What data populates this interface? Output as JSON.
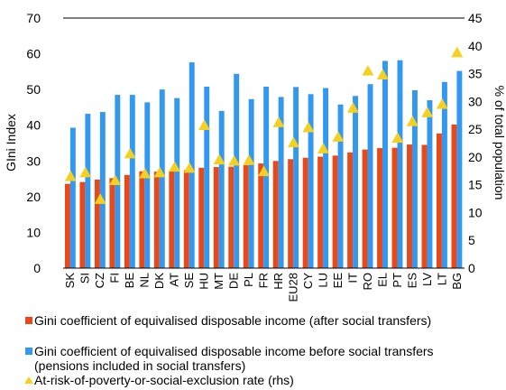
{
  "chart_data": {
    "type": "bar",
    "categories": [
      "SK",
      "SI",
      "CZ",
      "FI",
      "BE",
      "NL",
      "DK",
      "AT",
      "SE",
      "HU",
      "MT",
      "DE",
      "PL",
      "FR",
      "HR",
      "EU28",
      "CY",
      "LU",
      "EE",
      "IT",
      "RO",
      "EL",
      "PT",
      "ES",
      "LV",
      "LT",
      "BG"
    ],
    "series": [
      {
        "name": "Gini coefficient of equivalised disposable income (after social transfers)",
        "type": "bar",
        "axis": "left",
        "color": "#e8491b",
        "values": [
          23.6,
          24.1,
          24.8,
          25.2,
          26.1,
          27.1,
          27.0,
          27.2,
          27.4,
          28.1,
          28.3,
          28.4,
          28.8,
          29.3,
          30.0,
          30.5,
          30.9,
          31.2,
          31.5,
          32.4,
          33.2,
          33.6,
          33.7,
          34.6,
          34.5,
          37.7,
          40.2
        ]
      },
      {
        "name": "Gini coefficient of equivalised disposable income before social transfers (pensions included in social transfers)",
        "type": "bar",
        "axis": "left",
        "color": "#3399f0",
        "values": [
          39.3,
          43.2,
          43.7,
          48.5,
          48.5,
          46.4,
          50.0,
          47.6,
          57.6,
          50.8,
          44.0,
          54.4,
          47.3,
          50.8,
          47.9,
          50.7,
          48.7,
          50.4,
          45.8,
          48.2,
          51.5,
          58.0,
          58.2,
          49.8,
          47.0,
          52.1,
          55.2
        ]
      },
      {
        "name": "At-risk-of-poverty-or-social-exclusion rate (rhs)",
        "type": "scatter",
        "axis": "right",
        "color": "#f5d020",
        "values": [
          16.5,
          17.2,
          12.4,
          15.8,
          20.6,
          17.0,
          17.2,
          18.2,
          18.0,
          25.7,
          19.5,
          19.3,
          19.4,
          17.4,
          26.2,
          22.6,
          25.3,
          21.5,
          23.6,
          28.8,
          35.5,
          34.8,
          23.4,
          26.4,
          28.0,
          29.5,
          38.8
        ]
      }
    ],
    "title": "",
    "ylabel": "GIni Index",
    "y2label": "% of total population",
    "ylim": [
      0,
      70
    ],
    "y2lim": [
      0,
      45
    ],
    "yticks": [
      0,
      10,
      20,
      30,
      40,
      50,
      60,
      70
    ],
    "y2ticks": [
      0,
      5,
      10,
      15,
      20,
      25,
      30,
      35,
      40,
      45
    ],
    "grid": false,
    "legend_position": "bottom"
  }
}
